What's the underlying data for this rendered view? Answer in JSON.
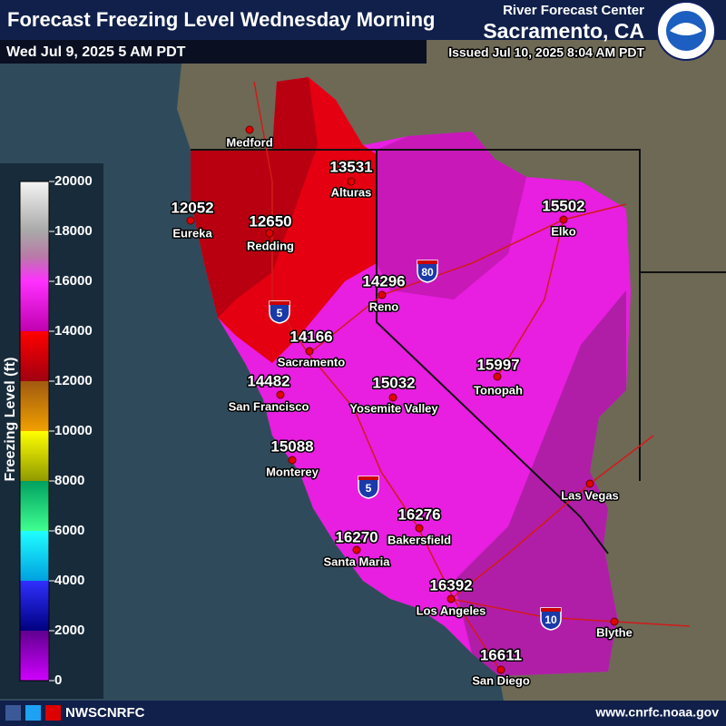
{
  "header": {
    "title": "Forecast Freezing Level Wednesday Morning",
    "valid_time": "Wed Jul 9, 2025 5 AM PDT",
    "office_line1": "River Forecast Center",
    "office_line2": "Sacramento, CA",
    "issued": "Issued Jul 10, 2025 8:04 AM PDT"
  },
  "legend": {
    "title": "Freezing Level (ft)",
    "ticks": [
      20000,
      18000,
      16000,
      14000,
      12000,
      10000,
      8000,
      6000,
      4000,
      2000,
      0
    ]
  },
  "stations": [
    {
      "name": "Eureka",
      "value": 12052
    },
    {
      "name": "Redding",
      "value": 12650
    },
    {
      "name": "Alturas",
      "value": 13531
    },
    {
      "name": "Elko",
      "value": 15502
    },
    {
      "name": "Reno",
      "value": 14296
    },
    {
      "name": "Sacramento",
      "value": 14166
    },
    {
      "name": "San Francisco",
      "value": 14482
    },
    {
      "name": "Yosemite Valley",
      "value": 15032
    },
    {
      "name": "Tonopah",
      "value": 15997
    },
    {
      "name": "Monterey",
      "value": 15088
    },
    {
      "name": "Bakersfield",
      "value": 16276
    },
    {
      "name": "Santa Maria",
      "value": 16270
    },
    {
      "name": "Los Angeles",
      "value": 16392
    },
    {
      "name": "San Diego",
      "value": 16611
    }
  ],
  "places": [
    {
      "name": "Medford"
    },
    {
      "name": "Las Vegas"
    },
    {
      "name": "Blythe"
    }
  ],
  "highways": [
    {
      "label": "5"
    },
    {
      "label": "80"
    },
    {
      "label": "5"
    },
    {
      "label": "10"
    }
  ],
  "footer": {
    "handle": "NWSCNRFC",
    "url": "www.cnrfc.noaa.gov"
  }
}
